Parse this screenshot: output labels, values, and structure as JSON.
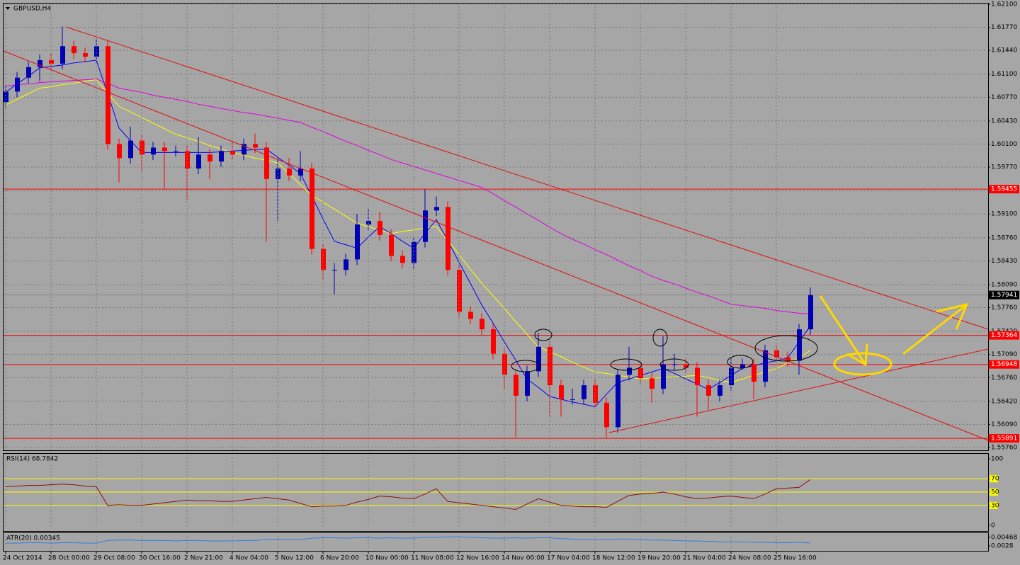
{
  "chart_data": [
    {
      "type": "candlestick",
      "title": "GBPUSD,H4",
      "categories": [
        "24 Oct 2014",
        null,
        null,
        null,
        "28 Oct 00:00",
        null,
        null,
        null,
        "29 Oct 08:00",
        null,
        null,
        null,
        "30 Oct 16:00",
        null,
        null,
        null,
        "2 Nov 21:00",
        null,
        null,
        null,
        "4 Nov 04:00",
        null,
        null,
        null,
        "5 Nov 12:00",
        null,
        null,
        null,
        "6 Nov 20:00",
        null,
        null,
        null,
        "10 Nov 00:00",
        null,
        null,
        null,
        "11 Nov 08:00",
        null,
        null,
        null,
        "12 Nov 16:00",
        null,
        null,
        null,
        "14 Nov 00:00",
        null,
        null,
        null,
        "17 Nov 04:00",
        null,
        null,
        null,
        "18 Nov 12:00",
        null,
        null,
        null,
        "19 Nov 20:00",
        null,
        null,
        null,
        "21 Nov 04:00",
        null,
        null,
        null,
        "24 Nov 08:00",
        null,
        null,
        null,
        "25 Nov 16:00",
        null,
        null,
        null
      ],
      "open": [
        1.607,
        1.6085,
        1.6105,
        1.612,
        1.613,
        1.6125,
        1.615,
        1.614,
        1.6135,
        1.615,
        1.601,
        1.599,
        1.6015,
        1.5995,
        1.6005,
        1.6,
        1.6,
        1.5975,
        1.5995,
        1.5985,
        1.6,
        1.5995,
        1.601,
        1.6005,
        1.596,
        1.5975,
        1.5965,
        1.5975,
        1.586,
        1.583,
        1.583,
        1.5845,
        1.5895,
        1.59,
        1.588,
        1.585,
        1.584,
        1.587,
        1.5915,
        1.592,
        1.583,
        1.577,
        1.576,
        1.5745,
        1.571,
        1.568,
        1.565,
        1.5685,
        1.572,
        1.5665,
        1.5645,
        1.5645,
        1.5665,
        1.564,
        1.5605,
        1.568,
        1.569,
        1.5675,
        1.566,
        1.5695,
        1.5695,
        1.569,
        1.5665,
        1.565,
        1.5665,
        1.569,
        1.5695,
        1.567,
        1.5715,
        1.5705,
        1.57,
        1.5745
      ],
      "high": [
        1.6093,
        1.6113,
        1.6128,
        1.6138,
        1.614,
        1.6178,
        1.6158,
        1.6148,
        1.616,
        1.6158,
        1.6018,
        1.6035,
        1.6023,
        1.6013,
        1.6013,
        1.6008,
        1.6008,
        1.602,
        1.6003,
        1.6008,
        1.6015,
        1.6018,
        1.6025,
        1.6013,
        1.599,
        1.599,
        1.6,
        1.5983,
        1.5868,
        1.584,
        1.5853,
        1.591,
        1.5918,
        1.5913,
        1.5888,
        1.5858,
        1.5878,
        1.5945,
        1.5935,
        1.5928,
        1.5838,
        1.5778,
        1.5768,
        1.5753,
        1.5718,
        1.5688,
        1.5693,
        1.574,
        1.5728,
        1.5673,
        1.566,
        1.5673,
        1.5673,
        1.5648,
        1.5688,
        1.572,
        1.5698,
        1.5683,
        1.5735,
        1.571,
        1.5703,
        1.5698,
        1.5673,
        1.5673,
        1.5705,
        1.5703,
        1.5703,
        1.5723,
        1.5723,
        1.5713,
        1.5753,
        1.5805
      ],
      "low": [
        1.6062,
        1.6077,
        1.6097,
        1.61,
        1.6117,
        1.6117,
        1.6132,
        1.6127,
        1.6127,
        1.6002,
        1.5955,
        1.5982,
        1.597,
        1.5987,
        1.5945,
        1.5992,
        1.593,
        1.5967,
        1.596,
        1.5977,
        1.5987,
        1.5987,
        1.5997,
        1.587,
        1.59,
        1.5957,
        1.5957,
        1.5852,
        1.5815,
        1.5795,
        1.5822,
        1.5837,
        1.5887,
        1.5872,
        1.5842,
        1.5832,
        1.5832,
        1.5862,
        1.5907,
        1.5822,
        1.5762,
        1.5752,
        1.5737,
        1.5702,
        1.566,
        1.5591,
        1.5642,
        1.5677,
        1.562,
        1.562,
        1.5637,
        1.5637,
        1.5632,
        1.559,
        1.5597,
        1.5672,
        1.5667,
        1.564,
        1.5652,
        1.5687,
        1.5682,
        1.562,
        1.563,
        1.5642,
        1.5657,
        1.5687,
        1.5645,
        1.5662,
        1.5697,
        1.5692,
        1.568,
        1.5737
      ],
      "close": [
        1.6085,
        1.6105,
        1.612,
        1.613,
        1.6125,
        1.615,
        1.614,
        1.6135,
        1.615,
        1.601,
        1.599,
        1.6015,
        1.5995,
        1.6005,
        1.6,
        1.6,
        1.5975,
        1.5995,
        1.5985,
        1.6,
        1.5995,
        1.601,
        1.6005,
        1.596,
        1.5975,
        1.5965,
        1.5975,
        1.586,
        1.583,
        1.583,
        1.5845,
        1.5895,
        1.59,
        1.588,
        1.585,
        1.584,
        1.587,
        1.5915,
        1.592,
        1.583,
        1.577,
        1.576,
        1.5745,
        1.571,
        1.568,
        1.565,
        1.5685,
        1.572,
        1.5665,
        1.5645,
        1.5645,
        1.5665,
        1.564,
        1.5605,
        1.568,
        1.569,
        1.5675,
        1.566,
        1.5695,
        1.5695,
        1.569,
        1.5665,
        1.565,
        1.5665,
        1.569,
        1.5695,
        1.567,
        1.5715,
        1.5705,
        1.57,
        1.5745,
        1.5794
      ],
      "up_color": "#0000b4",
      "down_color": "#ff0000",
      "overlays": [
        {
          "color": "#e000e0",
          "values": [
            1.6093,
            1.6095,
            1.6096,
            1.6098,
            1.6099,
            1.61,
            1.6101,
            1.6102,
            1.6103,
            1.6097,
            1.609,
            1.6087,
            1.6084,
            1.608,
            1.6077,
            1.6074,
            1.6071,
            1.6067,
            1.6064,
            1.6061,
            1.6058,
            1.6055,
            1.6053,
            1.605,
            1.6047,
            1.6044,
            1.6041,
            1.6034,
            1.6028,
            1.6021,
            1.6014,
            1.6008,
            1.6001,
            1.5995,
            1.5988,
            1.5983,
            1.5978,
            1.5973,
            1.5968,
            1.5963,
            1.5958,
            1.5953,
            1.5948,
            1.5939,
            1.5929,
            1.592,
            1.591,
            1.5901,
            1.5891,
            1.5882,
            1.5874,
            1.5867,
            1.5859,
            1.5852,
            1.5844,
            1.5836,
            1.5829,
            1.5821,
            1.5815,
            1.581,
            1.5804,
            1.5798,
            1.5793,
            1.5787,
            1.5781,
            1.5779,
            1.5777,
            1.5775,
            1.5772,
            1.577,
            1.5768,
            1.5767
          ]
        },
        {
          "color": "#ffff00",
          "values": [
            1.6066,
            1.6074,
            1.6082,
            1.609,
            1.6092,
            1.6095,
            1.6097,
            1.61,
            1.6102,
            1.6083,
            1.6064,
            1.6056,
            1.6048,
            1.604,
            1.6032,
            1.6024,
            1.6019,
            1.6014,
            1.6008,
            1.6003,
            1.5998,
            1.5994,
            1.599,
            1.5987,
            1.5983,
            1.5968,
            1.5952,
            1.5937,
            1.5927,
            1.5917,
            1.5907,
            1.5897,
            1.5892,
            1.5887,
            1.5882,
            1.5885,
            1.5887,
            1.589,
            1.5892,
            1.5872,
            1.5852,
            1.5831,
            1.5811,
            1.5793,
            1.5775,
            1.5756,
            1.5738,
            1.572,
            1.5713,
            1.5706,
            1.5698,
            1.5691,
            1.5684,
            1.5682,
            1.5679,
            1.5677,
            1.5674,
            1.5675,
            1.5676,
            1.5677,
            1.5678,
            1.5679,
            1.5676,
            1.5672,
            1.5669,
            1.5674,
            1.5679,
            1.5684,
            1.5689,
            1.5697,
            1.5704,
            1.5715
          ]
        },
        {
          "color": "#0000ff",
          "values": [
            1.6084,
            1.6096,
            1.6107,
            1.6119,
            1.6121,
            1.6123,
            1.6126,
            1.6128,
            1.613,
            1.6082,
            1.6033,
            1.6015,
            1.5998,
            1.5998,
            1.5998,
            1.5998,
            1.5998,
            1.5998,
            1.5998,
            1.5999,
            1.6,
            1.6001,
            1.6002,
            1.6003,
            1.5991,
            1.598,
            1.5968,
            1.5936,
            1.5903,
            1.5871,
            1.5866,
            1.5861,
            1.5877,
            1.5892,
            1.5882,
            1.5871,
            1.5861,
            1.5882,
            1.5902,
            1.5872,
            1.5841,
            1.5811,
            1.578,
            1.5754,
            1.5727,
            1.5701,
            1.5674,
            1.5662,
            1.5649,
            1.5645,
            1.5641,
            1.5638,
            1.5634,
            1.5652,
            1.5669,
            1.5674,
            1.5679,
            1.5684,
            1.5689,
            1.5682,
            1.5674,
            1.5667,
            1.5659,
            1.5669,
            1.5679,
            1.5689,
            1.5693,
            1.5697,
            1.57,
            1.5704,
            1.5727,
            1.575
          ]
        }
      ],
      "levels": [
        1.59455,
        1.57364,
        1.56948,
        1.55891
      ],
      "level_color": "#ff0000",
      "last_price": 1.57941,
      "ylim": [
        1.5576,
        1.621
      ],
      "yticks": [
        {
          "value": 1.621,
          "label": "1.62100"
        },
        {
          "value": 1.6177,
          "label": "1.61770"
        },
        {
          "value": 1.6144,
          "label": "1.61440"
        },
        {
          "value": 1.611,
          "label": "1.61100"
        },
        {
          "value": 1.6077,
          "label": "1.60770"
        },
        {
          "value": 1.6043,
          "label": "1.60430"
        },
        {
          "value": 1.601,
          "label": "1.60100"
        },
        {
          "value": 1.5977,
          "label": "1.59770"
        },
        {
          "value": 1.5943,
          "label": "1.59430"
        },
        {
          "value": 1.591,
          "label": "1.59100"
        },
        {
          "value": 1.5876,
          "label": "1.58760"
        },
        {
          "value": 1.5843,
          "label": "1.58430"
        },
        {
          "value": 1.5809,
          "label": "1.58090"
        },
        {
          "value": 1.5776,
          "label": "1.57760"
        },
        {
          "value": 1.5742,
          "label": "1.57420"
        },
        {
          "value": 1.5709,
          "label": "1.57090"
        },
        {
          "value": 1.5676,
          "label": "1.56760"
        },
        {
          "value": 1.5642,
          "label": "1.56420"
        },
        {
          "value": 1.5609,
          "label": "1.56090"
        },
        {
          "value": 1.5576,
          "label": "1.55760"
        }
      ],
      "grid": true
    },
    {
      "type": "line",
      "title": "RSI(14) 68.7842",
      "color": "#8b1010",
      "values": [
        58,
        59,
        60,
        60,
        61,
        62,
        61,
        59,
        58,
        30,
        31,
        30,
        30,
        32,
        34,
        36,
        38,
        37,
        37,
        36,
        36,
        38,
        40,
        42,
        40,
        38,
        33,
        28,
        29,
        29,
        30,
        35,
        39,
        44,
        43,
        41,
        40,
        47,
        55,
        36,
        34,
        32,
        30,
        28,
        26,
        24,
        32,
        40,
        35,
        30,
        29,
        28,
        28,
        27,
        36,
        45,
        47,
        48,
        50,
        47,
        43,
        40,
        41,
        43,
        44,
        42,
        40,
        47,
        55,
        56,
        57,
        68.8
      ],
      "ylim": [
        0,
        100
      ],
      "yticks": [
        100,
        70,
        50,
        30,
        0
      ],
      "levels": [
        70,
        50,
        30
      ],
      "level_color": "#ffff00"
    },
    {
      "type": "line",
      "title": "ATR(20) 0.00345",
      "color": "#2f7fe0",
      "values": [
        0.0034,
        0.0034,
        0.0035,
        0.0035,
        0.0034,
        0.0035,
        0.0035,
        0.0034,
        0.0034,
        0.004,
        0.0041,
        0.0041,
        0.004,
        0.004,
        0.004,
        0.0039,
        0.004,
        0.004,
        0.0039,
        0.0039,
        0.0039,
        0.004,
        0.004,
        0.0042,
        0.0043,
        0.0042,
        0.0042,
        0.0045,
        0.0046,
        0.0046,
        0.0045,
        0.0046,
        0.0046,
        0.0045,
        0.0046,
        0.0045,
        0.0045,
        0.0047,
        0.0047,
        0.0048,
        0.0048,
        0.0047,
        0.0046,
        0.0045,
        0.0045,
        0.0046,
        0.0045,
        0.0046,
        0.0046,
        0.0044,
        0.0043,
        0.0042,
        0.0042,
        0.0042,
        0.0043,
        0.0043,
        0.0042,
        0.0041,
        0.0041,
        0.004,
        0.0039,
        0.0039,
        0.0038,
        0.0037,
        0.0037,
        0.0037,
        0.0036,
        0.0036,
        0.0035,
        0.0035,
        0.0036,
        0.00345
      ],
      "ylim": [
        0.0028,
        0.00468
      ],
      "yticks": [
        0.00468,
        0.0028
      ]
    }
  ]
}
